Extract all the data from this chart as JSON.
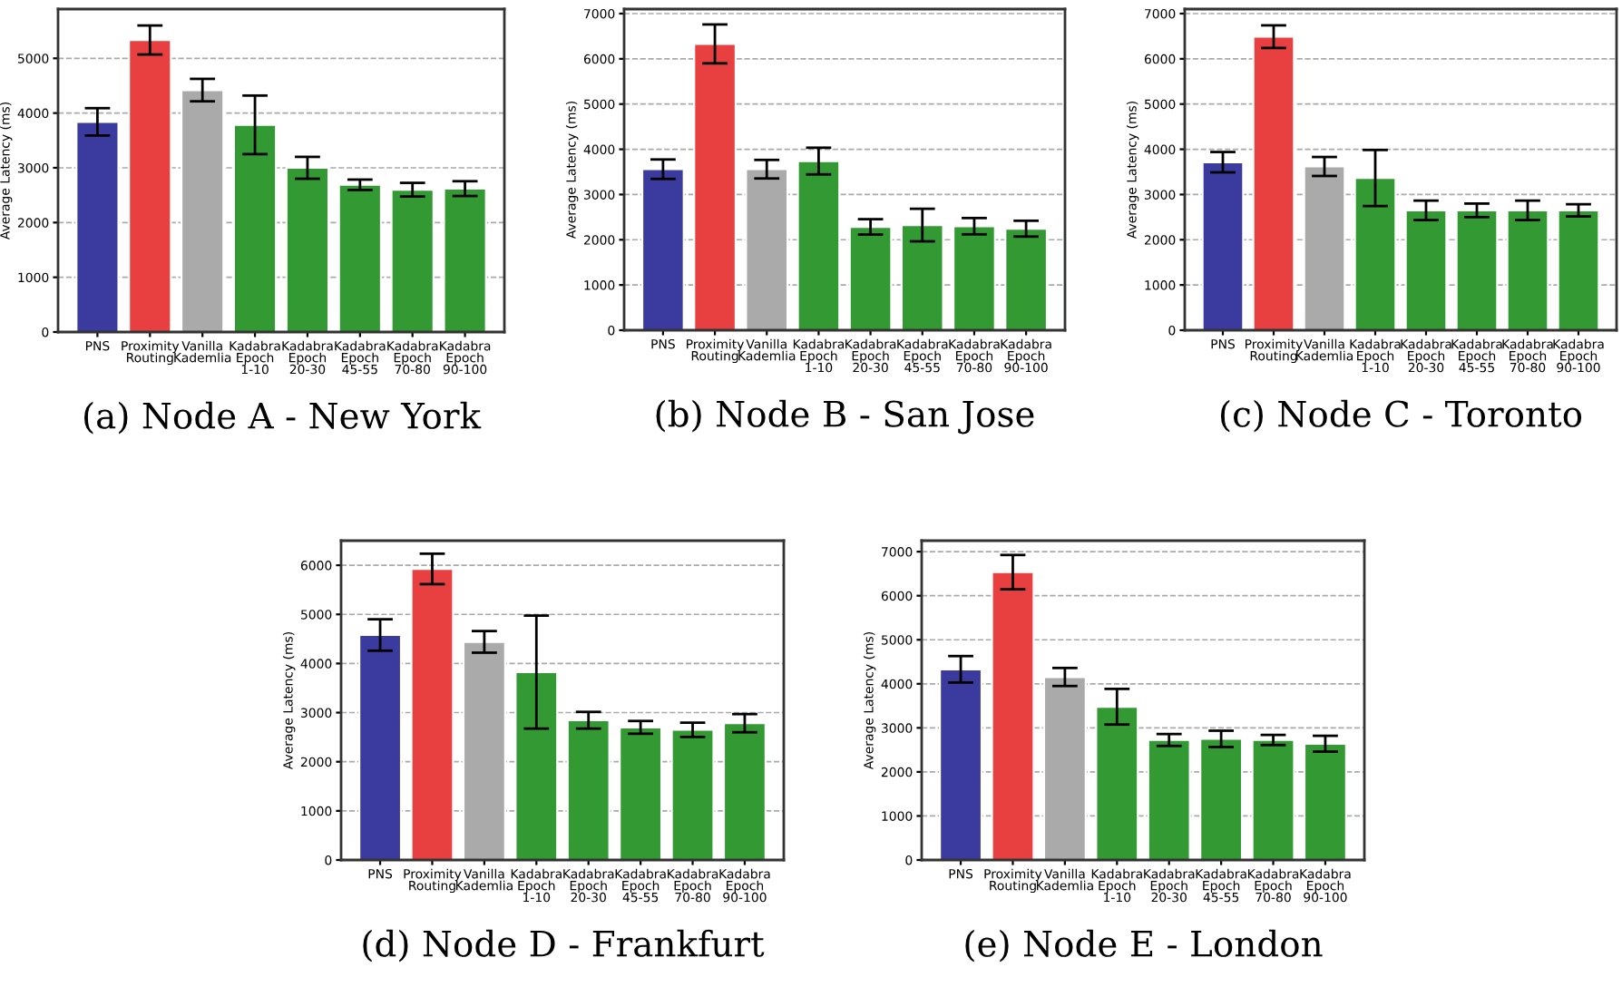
{
  "chart_data": [
    {
      "type": "bar",
      "xlabel": "(a) Node A - New York",
      "ylabel": "Average Latency (ms)",
      "categories": [
        "PNS",
        "Proximity\nRouting",
        "Vanilla\nKademlia",
        "Kadabra\nEpoch\n1-10",
        "Kadabra\nEpoch\n20-30",
        "Kadabra\nEpoch\n45-55",
        "Kadabra\nEpoch\n70-80",
        "Kadabra\nEpoch\n90-100"
      ],
      "values": [
        3840,
        5335,
        4420,
        3785,
        3000,
        2690,
        2600,
        2620
      ],
      "errors": [
        250,
        265,
        205,
        535,
        200,
        95,
        125,
        135
      ],
      "colors": [
        "#3a3a9f",
        "#e84040",
        "#aaaaaa",
        "#339933",
        "#339933",
        "#339933",
        "#339933",
        "#339933"
      ],
      "ylim": [
        0,
        5900
      ],
      "yticks": [
        0,
        1000,
        2000,
        3000,
        4000,
        5000
      ],
      "grid": "y"
    },
    {
      "type": "bar",
      "xlabel": "(b) Node B - San Jose",
      "ylabel": "Average Latency (ms)",
      "categories": [
        "PNS",
        "Proximity\nRouting",
        "Vanilla\nKademlia",
        "Kadabra\nEpoch\n1-10",
        "Kadabra\nEpoch\n20-30",
        "Kadabra\nEpoch\n45-55",
        "Kadabra\nEpoch\n70-80",
        "Kadabra\nEpoch\n90-100"
      ],
      "values": [
        3560,
        6330,
        3560,
        3740,
        2285,
        2325,
        2300,
        2245
      ],
      "errors": [
        215,
        430,
        205,
        295,
        170,
        360,
        180,
        175
      ],
      "colors": [
        "#3a3a9f",
        "#e84040",
        "#aaaaaa",
        "#339933",
        "#339933",
        "#339933",
        "#339933",
        "#339933"
      ],
      "ylim": [
        0,
        7100
      ],
      "yticks": [
        0,
        1000,
        2000,
        3000,
        4000,
        5000,
        6000,
        7000
      ],
      "grid": "y"
    },
    {
      "type": "bar",
      "xlabel": "(c) Node C - Toronto",
      "ylabel": "Average Latency (ms)",
      "categories": [
        "PNS",
        "Proximity\nRouting",
        "Vanilla\nKademlia",
        "Kadabra\nEpoch\n1-10",
        "Kadabra\nEpoch\n20-30",
        "Kadabra\nEpoch\n45-55",
        "Kadabra\nEpoch\n70-80",
        "Kadabra\nEpoch\n90-100"
      ],
      "values": [
        3715,
        6490,
        3620,
        3365,
        2650,
        2650,
        2650,
        2650
      ],
      "errors": [
        225,
        250,
        210,
        620,
        215,
        150,
        215,
        135
      ],
      "colors": [
        "#3a3a9f",
        "#e84040",
        "#aaaaaa",
        "#339933",
        "#339933",
        "#339933",
        "#339933",
        "#339933"
      ],
      "ylim": [
        0,
        7100
      ],
      "yticks": [
        0,
        1000,
        2000,
        3000,
        4000,
        5000,
        6000,
        7000
      ],
      "grid": "y"
    },
    {
      "type": "bar",
      "xlabel": "(d) Node D - Frankfurt",
      "ylabel": "Average Latency (ms)",
      "categories": [
        "PNS",
        "Proximity\nRouting",
        "Vanilla\nKademlia",
        "Kadabra\nEpoch\n1-10",
        "Kadabra\nEpoch\n20-30",
        "Kadabra\nEpoch\n45-55",
        "Kadabra\nEpoch\n70-80",
        "Kadabra\nEpoch\n90-100"
      ],
      "values": [
        4580,
        5925,
        4440,
        3825,
        2845,
        2700,
        2650,
        2785
      ],
      "errors": [
        320,
        310,
        220,
        1150,
        170,
        130,
        145,
        185
      ],
      "colors": [
        "#3a3a9f",
        "#e84040",
        "#aaaaaa",
        "#339933",
        "#339933",
        "#339933",
        "#339933",
        "#339933"
      ],
      "ylim": [
        0,
        6500
      ],
      "yticks": [
        0,
        1000,
        2000,
        3000,
        4000,
        5000,
        6000
      ],
      "grid": "y"
    },
    {
      "type": "bar",
      "xlabel": "(e) Node E - London",
      "ylabel": "Average Latency (ms)",
      "categories": [
        "PNS",
        "Proximity\nRouting",
        "Vanilla\nKademlia",
        "Kadabra\nEpoch\n1-10",
        "Kadabra\nEpoch\n20-30",
        "Kadabra\nEpoch\n45-55",
        "Kadabra\nEpoch\n70-80",
        "Kadabra\nEpoch\n90-100"
      ],
      "values": [
        4330,
        6535,
        4155,
        3480,
        2725,
        2750,
        2725,
        2640
      ],
      "errors": [
        300,
        390,
        205,
        405,
        135,
        185,
        115,
        180
      ],
      "colors": [
        "#3a3a9f",
        "#e84040",
        "#aaaaaa",
        "#339933",
        "#339933",
        "#339933",
        "#339933",
        "#339933"
      ],
      "ylim": [
        0,
        7250
      ],
      "yticks": [
        0,
        1000,
        2000,
        3000,
        4000,
        5000,
        6000,
        7000
      ],
      "grid": "y"
    }
  ]
}
